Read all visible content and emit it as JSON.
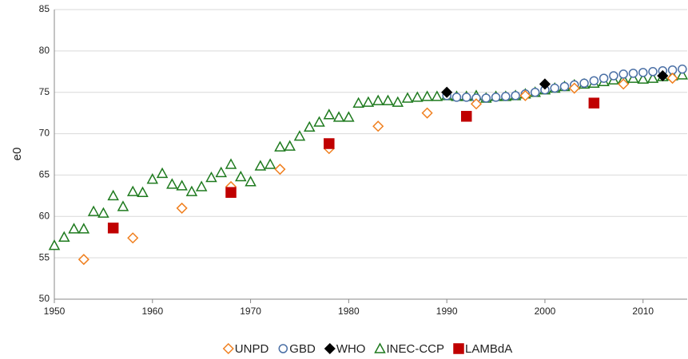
{
  "chart_data": {
    "type": "scatter",
    "y_label": "e0",
    "xlim": [
      1950,
      2014.5
    ],
    "xticks": [
      1950,
      1960,
      1970,
      1980,
      1990,
      2000,
      2010
    ],
    "ylim": [
      50,
      85
    ],
    "yticks": [
      50,
      55,
      60,
      65,
      70,
      75,
      80,
      85
    ],
    "grid": true,
    "legend": "bottom",
    "series": [
      {
        "name": "UNPD",
        "color": "#f07f1e",
        "marker": "diamond",
        "filled": false,
        "x": [
          1953,
          1958,
          1963,
          1968,
          1973,
          1978,
          1983,
          1988,
          1993,
          1998,
          2003,
          2008,
          2013
        ],
        "values": [
          54.8,
          57.4,
          61.0,
          63.6,
          65.7,
          68.2,
          70.9,
          72.5,
          73.6,
          74.6,
          75.5,
          76.0,
          76.7
        ]
      },
      {
        "name": "GBD",
        "color": "#4a6fa5",
        "marker": "circle",
        "filled": false,
        "x": [
          1990,
          1991,
          1992,
          1993,
          1994,
          1995,
          1996,
          1997,
          1998,
          1999,
          2000,
          2001,
          2002,
          2003,
          2004,
          2005,
          2006,
          2007,
          2008,
          2009,
          2010,
          2011,
          2012,
          2013,
          2014
        ],
        "values": [
          74.6,
          74.4,
          74.4,
          74.3,
          74.3,
          74.4,
          74.5,
          74.6,
          74.8,
          75.0,
          75.3,
          75.5,
          75.7,
          75.9,
          76.1,
          76.4,
          76.7,
          77.0,
          77.2,
          77.3,
          77.4,
          77.5,
          77.6,
          77.7,
          77.8
        ]
      },
      {
        "name": "WHO",
        "color": "#000000",
        "marker": "diamond",
        "filled": true,
        "x": [
          1990,
          2000,
          2012
        ],
        "values": [
          75.0,
          76.0,
          77.0
        ]
      },
      {
        "name": "INEC-CCP",
        "color": "#1e7a1e",
        "marker": "triangle",
        "filled": false,
        "x": [
          1950,
          1951,
          1952,
          1953,
          1954,
          1955,
          1956,
          1957,
          1958,
          1959,
          1960,
          1961,
          1962,
          1963,
          1964,
          1965,
          1966,
          1967,
          1968,
          1969,
          1970,
          1971,
          1972,
          1973,
          1974,
          1975,
          1976,
          1977,
          1978,
          1979,
          1980,
          1981,
          1982,
          1983,
          1984,
          1985,
          1986,
          1987,
          1988,
          1989,
          1990,
          1991,
          1992,
          1993,
          1994,
          1995,
          1996,
          1997,
          1998,
          1999,
          2000,
          2001,
          2002,
          2003,
          2004,
          2005,
          2006,
          2007,
          2008,
          2009,
          2010,
          2011,
          2012,
          2013,
          2014
        ],
        "values": [
          56.5,
          57.5,
          58.5,
          58.5,
          60.6,
          60.4,
          62.5,
          61.2,
          63.0,
          62.9,
          64.5,
          65.2,
          63.9,
          63.7,
          63.0,
          63.6,
          64.7,
          65.3,
          66.3,
          64.8,
          64.2,
          66.1,
          66.3,
          68.4,
          68.5,
          69.7,
          70.8,
          71.4,
          72.3,
          72.0,
          72.0,
          73.7,
          73.8,
          74.0,
          74.0,
          73.8,
          74.3,
          74.4,
          74.5,
          74.5,
          74.6,
          74.5,
          74.5,
          74.6,
          74.3,
          74.5,
          74.5,
          74.6,
          74.8,
          75.0,
          75.3,
          75.5,
          75.7,
          75.9,
          76.0,
          76.1,
          76.3,
          76.5,
          76.6,
          76.7,
          76.6,
          76.7,
          76.9,
          77.0,
          77.1
        ]
      },
      {
        "name": "LAMBdA",
        "color": "#c00000",
        "marker": "square",
        "filled": true,
        "x": [
          1956,
          1968,
          1978,
          1992,
          2005
        ],
        "values": [
          58.6,
          62.9,
          68.8,
          72.1,
          73.7
        ]
      }
    ]
  }
}
